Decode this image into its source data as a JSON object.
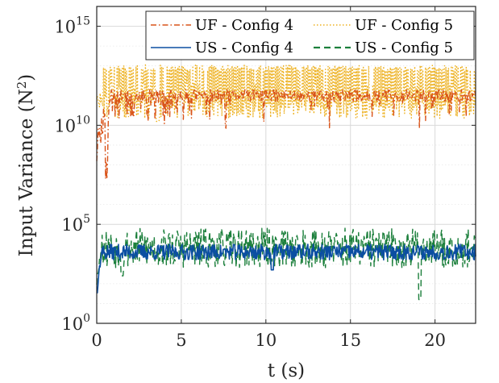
{
  "chart_data": {
    "type": "line",
    "xlabel": "t (s)",
    "ylabel": "Input Variance (N²)",
    "ylabel_main": "Input Variance (N",
    "ylabel_sup": "2",
    "ylabel_close": ")",
    "yscale": "log",
    "xlim": [
      0,
      22.4
    ],
    "ylim_exp": [
      0,
      16
    ],
    "grid": true,
    "x_ticks": [
      {
        "value": 0,
        "label": "0"
      },
      {
        "value": 5,
        "label": "5"
      },
      {
        "value": 10,
        "label": "10"
      },
      {
        "value": 15,
        "label": "15"
      },
      {
        "value": 20,
        "label": "20"
      }
    ],
    "y_ticks": [
      {
        "exp": 0,
        "base": "10",
        "sup": "0"
      },
      {
        "exp": 5,
        "base": "10",
        "sup": "5"
      },
      {
        "exp": 10,
        "base": "10",
        "sup": "10"
      },
      {
        "exp": 15,
        "base": "10",
        "sup": "15"
      }
    ],
    "legend_position": "top-right",
    "series": [
      {
        "name": "UF - Config 4",
        "color": "#d95319",
        "style": "dashdot",
        "baseline_exp": 11.5,
        "amplitude_exp": 0.6,
        "seed": 11,
        "notes": "rises from ~10^8 near t=0.6 to a plateau around 10^11.5"
      },
      {
        "name": "UF - Config 5",
        "color": "#edb120",
        "style": "dotted",
        "baseline_exp": 11.8,
        "amplitude_exp": 1.2,
        "seed": 23,
        "notes": "dense band oscillating between ~10^10.5 and ~10^13"
      },
      {
        "name": "US - Config 4",
        "color": "#0b4ea2",
        "style": "solid",
        "baseline_exp": 3.6,
        "amplitude_exp": 0.4,
        "seed": 37,
        "notes": "starts near 10^1.5 then hovers around 10^3.6"
      },
      {
        "name": "US - Config 5",
        "color": "#1b7f3b",
        "style": "dashed",
        "baseline_exp": 3.8,
        "amplitude_exp": 1.0,
        "seed": 53,
        "notes": "fluctuates between ~10^2.5 and ~10^5, dip near t=19"
      }
    ]
  }
}
